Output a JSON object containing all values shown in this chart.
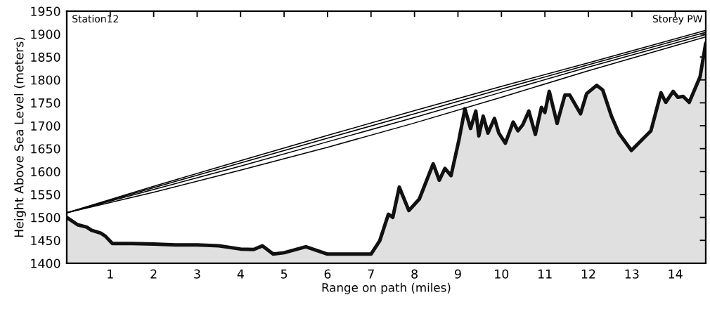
{
  "chart_data": {
    "type": "line",
    "xlabel": "Range on path (miles)",
    "ylabel": "Height Above Sea Level (meters)",
    "annotations": [
      "Station12",
      "Storey PW"
    ],
    "xlim": [
      0,
      14.7
    ],
    "xticks": [
      1,
      2,
      3,
      4,
      5,
      6,
      7,
      8,
      9,
      10,
      11,
      12,
      13,
      14
    ],
    "ylim": [
      1400,
      1950
    ],
    "yticks": [
      1400,
      1450,
      1500,
      1550,
      1600,
      1650,
      1700,
      1750,
      1800,
      1850,
      1900,
      1950
    ],
    "series": [
      {
        "type": "area",
        "color": "#111111",
        "x": [
          0,
          0.25,
          0.46,
          0.57,
          0.78,
          0.89,
          1.05,
          1.5,
          2.0,
          2.5,
          3.0,
          3.5,
          4.0,
          4.3,
          4.5,
          4.75,
          5.0,
          5.5,
          6.0,
          6.5,
          7.0,
          7.2,
          7.4,
          7.5,
          7.65,
          7.87,
          8.11,
          8.43,
          8.57,
          8.7,
          8.84,
          9.02,
          9.16,
          9.29,
          9.41,
          9.48,
          9.58,
          9.69,
          9.84,
          9.94,
          10.09,
          10.27,
          10.38,
          10.49,
          10.63,
          10.78,
          10.92,
          11.0,
          11.1,
          11.28,
          11.46,
          11.57,
          11.82,
          11.96,
          12.19,
          12.33,
          12.53,
          12.7,
          12.99,
          13.21,
          13.44,
          13.67,
          13.78,
          13.95,
          14.06,
          14.18,
          14.32,
          14.57,
          14.7
        ],
        "values": [
          1500,
          1484,
          1479,
          1472,
          1466,
          1459,
          1443,
          1443,
          1442,
          1440,
          1440,
          1438,
          1431,
          1430,
          1438,
          1420,
          1423,
          1436,
          1420,
          1420,
          1420,
          1449,
          1507,
          1500,
          1566,
          1515,
          1540,
          1617,
          1581,
          1607,
          1591,
          1668,
          1737,
          1694,
          1732,
          1678,
          1721,
          1684,
          1716,
          1684,
          1662,
          1708,
          1689,
          1702,
          1732,
          1681,
          1740,
          1729,
          1775,
          1705,
          1767,
          1767,
          1726,
          1770,
          1788,
          1778,
          1721,
          1684,
          1646,
          1667,
          1689,
          1772,
          1751,
          1775,
          1762,
          1764,
          1751,
          1807,
          1880
        ]
      },
      {
        "color": "#000000",
        "x": [
          0,
          2,
          4,
          6,
          8,
          10,
          12,
          14.7
        ],
        "values": [
          1510,
          1568,
          1624,
          1679,
          1733,
          1786,
          1837,
          1908
        ]
      },
      {
        "color": "#000000",
        "x": [
          0,
          2,
          4,
          6,
          8,
          10,
          12,
          14.7
        ],
        "values": [
          1510,
          1565,
          1619,
          1673,
          1726,
          1780,
          1833,
          1904
        ]
      },
      {
        "color": "#000000",
        "x": [
          0,
          2,
          4,
          6,
          8,
          10,
          12,
          14.7
        ],
        "values": [
          1510,
          1561,
          1612,
          1665,
          1718,
          1773,
          1828,
          1899
        ]
      },
      {
        "color": "#000000",
        "x": [
          0,
          2,
          4,
          6,
          8,
          10,
          12,
          14.7
        ],
        "values": [
          1510,
          1555,
          1603,
          1653,
          1706,
          1762,
          1820,
          1894
        ]
      }
    ]
  }
}
